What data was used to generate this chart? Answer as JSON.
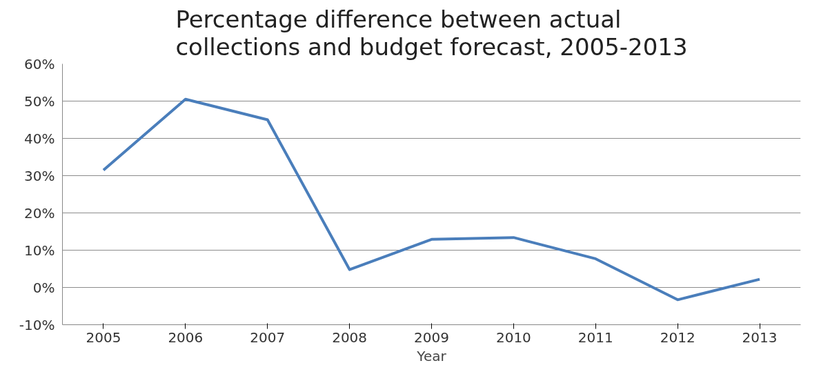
{
  "chart_data": {
    "type": "line",
    "title": "Percentage difference between actual collections and budget forecast, 2005-2013",
    "xlabel": "Year",
    "categories": [
      "2005",
      "2006",
      "2007",
      "2008",
      "2009",
      "2010",
      "2011",
      "2012",
      "2013"
    ],
    "series": [
      {
        "color": "#4a7ebb",
        "values": [
          31.5,
          50.5,
          45,
          4.8,
          12.9,
          13.4,
          7.7,
          -3.3,
          2.2
        ]
      }
    ],
    "ylim": [
      -10,
      60
    ],
    "yticks": [
      {
        "value": -10,
        "label": "-10%"
      },
      {
        "value": 0,
        "label": "0%"
      },
      {
        "value": 10,
        "label": "10%"
      },
      {
        "value": 20,
        "label": "20%"
      },
      {
        "value": 30,
        "label": "30%"
      },
      {
        "value": 40,
        "label": "40%"
      },
      {
        "value": 50,
        "label": "50%"
      },
      {
        "value": 60,
        "label": "60%"
      }
    ],
    "grid": "y",
    "marker": "none",
    "line_style": "solid"
  }
}
